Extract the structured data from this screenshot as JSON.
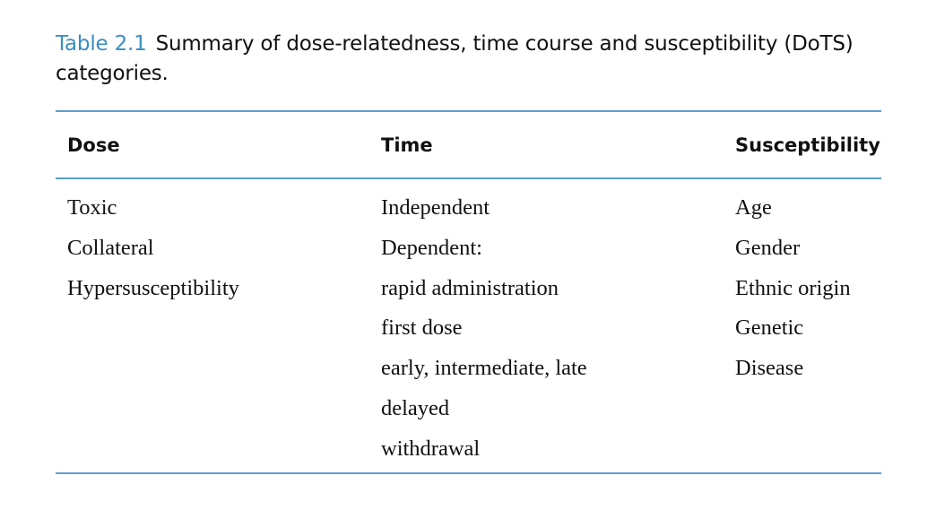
{
  "caption": {
    "label": "Table 2.1",
    "text": "Summary of dose-relatedness, time course and susceptibility (DoTS) categories."
  },
  "table": {
    "headers": [
      "Dose",
      "Time",
      "Susceptibility"
    ],
    "dose": [
      "Toxic",
      "Collateral",
      "Hypersusceptibility"
    ],
    "time": [
      "Independent",
      "Dependent:",
      "rapid administration",
      "first dose",
      "early, intermediate, late",
      "delayed",
      "withdrawal"
    ],
    "susceptibility": [
      "Age",
      "Gender",
      "Ethnic origin",
      "Genetic",
      "Disease"
    ]
  },
  "colors": {
    "caption_label": "#3a8dc3",
    "rules": "#5a9fd0"
  }
}
